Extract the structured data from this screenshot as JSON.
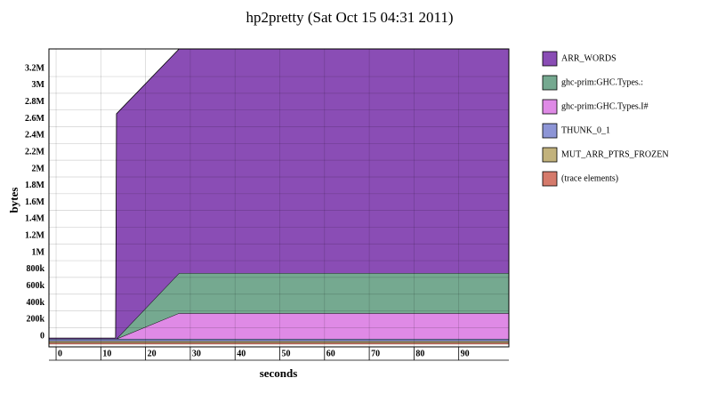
{
  "chart_data": {
    "type": "stacked-area",
    "title": "hp2pretty (Sat Oct 15 04:31 2011)",
    "x_label": "seconds",
    "y_label": "bytes",
    "x": [
      -1.6,
      13.3,
      13.5,
      27.5,
      101.2
    ],
    "series": [
      {
        "name": "ARR_WORDS",
        "color": "#8a4db5",
        "values": [
          10000,
          10000,
          2690000,
          2679000,
          2679000
        ]
      },
      {
        "name": "ghc-prim:GHC.Types.:",
        "color": "#75a990",
        "values": [
          0,
          0,
          0,
          479000,
          479000
        ]
      },
      {
        "name": "ghc-prim:GHC.Types.I#",
        "color": "#df8ae6",
        "values": [
          0,
          0,
          0,
          307000,
          307000
        ]
      },
      {
        "name": "THUNK_0_1",
        "color": "#8d95d6",
        "values": [
          25000,
          25000,
          25000,
          25000,
          25000
        ]
      },
      {
        "name": "MUT_ARR_PTRS_FROZEN",
        "color": "#c2b27c",
        "values": [
          20000,
          20000,
          20000,
          20000,
          20000
        ]
      },
      {
        "name": "(trace elements)",
        "color": "#d57a6b",
        "values": [
          20000,
          20000,
          20000,
          20000,
          20000
        ]
      }
    ],
    "xlim": [
      -1.6,
      101.2
    ],
    "xticks": [
      0,
      10,
      20,
      30,
      40,
      50,
      60,
      70,
      80,
      90
    ],
    "ylim": [
      -30000,
      3530000
    ],
    "yticks": [
      0,
      {
        "value": 200000,
        "label": "200k"
      },
      {
        "value": 400000,
        "label": "400k"
      },
      {
        "value": 600000,
        "label": "600k"
      },
      {
        "value": 800000,
        "label": "800k"
      },
      {
        "value": 1000000,
        "label": "1M"
      },
      {
        "value": 1200000,
        "label": "1.2M"
      },
      {
        "value": 1400000,
        "label": "1.4M"
      },
      {
        "value": 1600000,
        "label": "1.6M"
      },
      {
        "value": 1800000,
        "label": "1.8M"
      },
      {
        "value": 2000000,
        "label": "2M"
      },
      {
        "value": 2200000,
        "label": "2.2M"
      },
      {
        "value": 2400000,
        "label": "2.4M"
      },
      {
        "value": 2600000,
        "label": "2.6M"
      },
      {
        "value": 2800000,
        "label": "2.8M"
      },
      {
        "value": 3000000,
        "label": "3M"
      },
      {
        "value": 3200000,
        "label": "3.2M"
      }
    ],
    "grid": true
  }
}
